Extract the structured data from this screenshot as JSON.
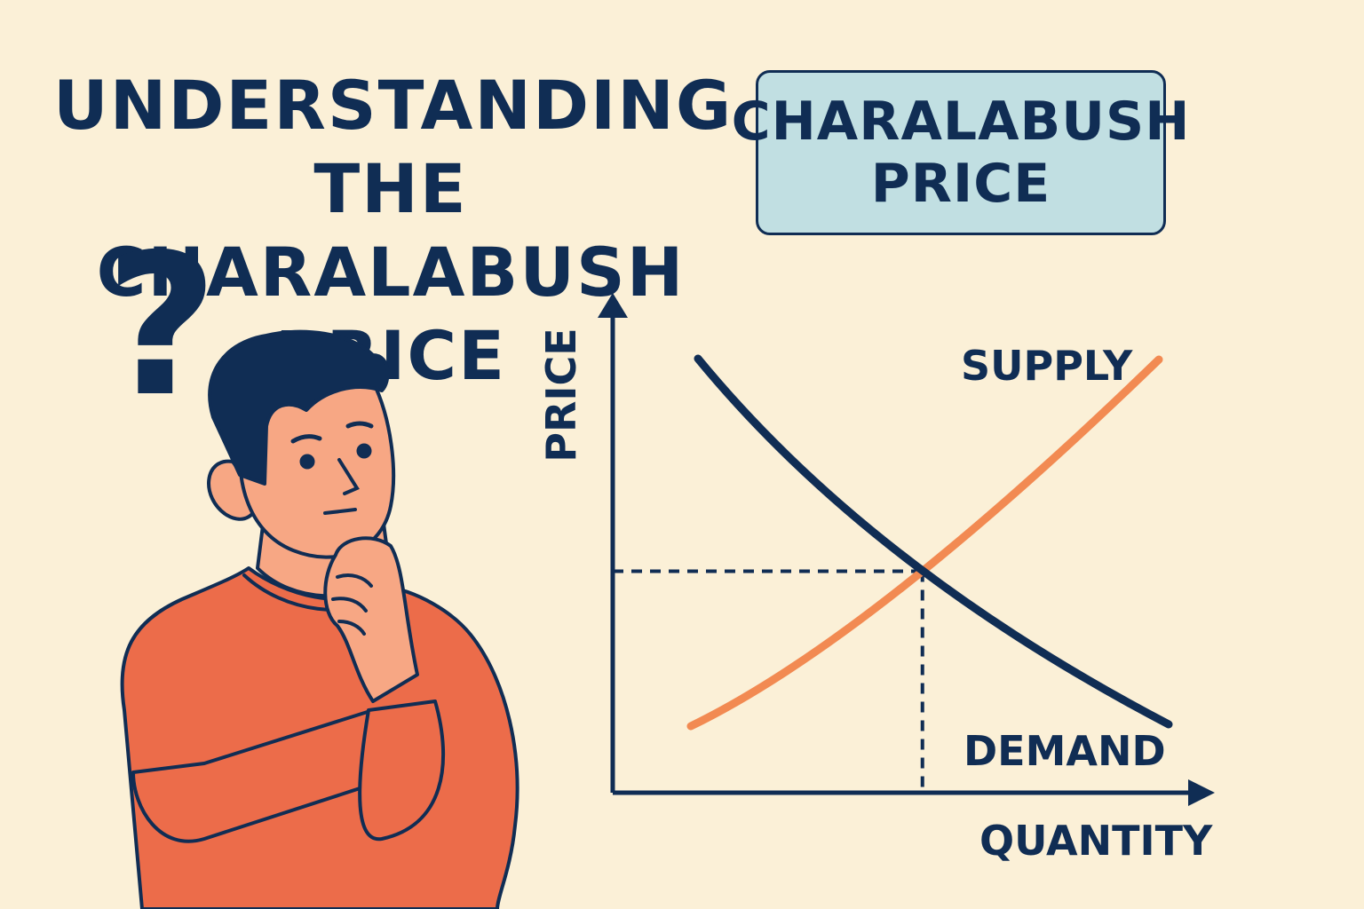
{
  "title_lines": [
    "UNDERSTANDING",
    "THE CHARALABUSH",
    "PRICE"
  ],
  "badge_lines": [
    "CHARALABUSH",
    "PRICE"
  ],
  "question_mark": "?",
  "colors": {
    "background": "#fbf0d7",
    "navy": "#102d54",
    "supply": "#f28a52",
    "badge_fill": "#c1dfe2",
    "shirt": "#ec6c4a",
    "skin": "#f7a784"
  },
  "icons": [
    "thinking-person-illustration",
    "question-mark-icon"
  ],
  "chart_data": {
    "type": "line",
    "title": "",
    "xlabel": "QUANTITY",
    "ylabel": "PRICE",
    "tick_labels": false,
    "grid": false,
    "series": [
      {
        "name": "SUPPLY",
        "color": "#f28a52",
        "direction": "upward sloping",
        "label_position": "top-right"
      },
      {
        "name": "DEMAND",
        "color": "#102d54",
        "direction": "downward sloping",
        "label_position": "bottom-right"
      }
    ],
    "equilibrium": {
      "guides": "dashed lines to both axes"
    }
  }
}
